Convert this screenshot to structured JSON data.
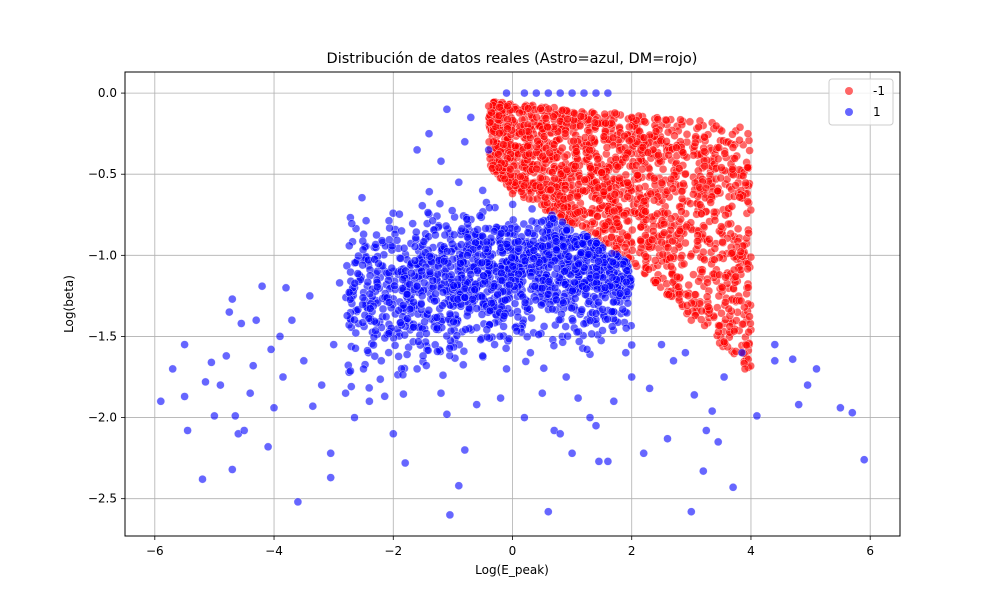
{
  "chart_data": {
    "type": "scatter",
    "title": "Distribución de datos reales (Astro=azul, DM=rojo)",
    "xlabel": "Log(E_peak)",
    "ylabel": "Log(beta)",
    "xlim": [
      -6.5,
      6.5
    ],
    "ylim": [
      -2.73,
      0.13
    ],
    "x_ticks": [
      -6,
      -4,
      -2,
      0,
      2,
      4,
      6
    ],
    "x_tick_labels": [
      "−6",
      "−4",
      "−2",
      "0",
      "2",
      "4",
      "6"
    ],
    "y_ticks": [
      0.0,
      -0.5,
      -1.0,
      -1.5,
      -2.0,
      -2.5
    ],
    "y_tick_labels": [
      "0.0",
      "−0.5",
      "−1.0",
      "−1.5",
      "−2.0",
      "−2.5"
    ],
    "grid": true,
    "legend_position": "top-right",
    "series": [
      {
        "name": "-1",
        "color": "#ff0000",
        "region": {
          "x_range": [
            -0.4,
            4.0
          ],
          "top_edge": [
            [
              -0.4,
              -0.05
            ],
            [
              4.0,
              -0.2
            ]
          ],
          "lower_edge": [
            [
              -0.4,
              -0.45
            ],
            [
              0.0,
              -0.6
            ],
            [
              2.0,
              -1.05
            ],
            [
              4.0,
              -1.72
            ]
          ],
          "count": 1700
        },
        "points": [
          [
            -0.4,
            -0.08
          ],
          [
            0.0,
            -0.62
          ],
          [
            3.9,
            -1.7
          ],
          [
            3.95,
            -0.25
          ],
          [
            2.0,
            -0.15
          ],
          [
            1.0,
            -0.8
          ],
          [
            3.0,
            -1.4
          ]
        ]
      },
      {
        "name": "1",
        "color": "#0000ff",
        "dense_region": {
          "x_range": [
            -2.8,
            2.0
          ],
          "y_center": -1.1,
          "count": 1500
        },
        "points": [
          [
            -5.9,
            -1.9
          ],
          [
            -5.7,
            -1.7
          ],
          [
            -5.5,
            -1.55
          ],
          [
            -5.5,
            -1.87
          ],
          [
            -5.45,
            -2.08
          ],
          [
            -5.2,
            -2.38
          ],
          [
            -5.15,
            -1.78
          ],
          [
            -5.05,
            -1.66
          ],
          [
            -5.0,
            -1.99
          ],
          [
            -4.9,
            -1.8
          ],
          [
            -4.8,
            -1.62
          ],
          [
            -4.75,
            -1.35
          ],
          [
            -4.7,
            -1.27
          ],
          [
            -4.7,
            -2.32
          ],
          [
            -4.65,
            -1.99
          ],
          [
            -4.6,
            -2.1
          ],
          [
            -4.55,
            -1.42
          ],
          [
            -4.5,
            -2.08
          ],
          [
            -4.4,
            -1.85
          ],
          [
            -4.35,
            -1.68
          ],
          [
            -4.3,
            -1.4
          ],
          [
            -4.2,
            -1.19
          ],
          [
            -4.1,
            -2.18
          ],
          [
            -4.05,
            -1.58
          ],
          [
            -4.0,
            -1.94
          ],
          [
            -3.9,
            -1.5
          ],
          [
            -3.85,
            -1.75
          ],
          [
            -3.8,
            -1.2
          ],
          [
            -3.7,
            -1.4
          ],
          [
            -3.6,
            -2.52
          ],
          [
            -3.5,
            -1.65
          ],
          [
            -3.4,
            -1.25
          ],
          [
            -3.35,
            -1.93
          ],
          [
            -3.2,
            -1.8
          ],
          [
            -3.05,
            -2.37
          ],
          [
            -3.05,
            -2.22
          ],
          [
            -3.0,
            -1.55
          ],
          [
            -2.9,
            -1.17
          ],
          [
            -2.8,
            -1.85
          ],
          [
            -2.65,
            -2.0
          ],
          [
            -2.5,
            -1.7
          ],
          [
            -2.4,
            -1.9
          ],
          [
            -2.2,
            -1.65
          ],
          [
            -2.0,
            -2.1
          ],
          [
            -1.8,
            -2.28
          ],
          [
            -1.6,
            -1.7
          ],
          [
            -1.5,
            -1.62
          ],
          [
            -1.2,
            -1.85
          ],
          [
            -1.1,
            -1.98
          ],
          [
            -1.05,
            -2.6
          ],
          [
            -0.9,
            -2.42
          ],
          [
            -0.8,
            -2.2
          ],
          [
            -0.6,
            -1.92
          ],
          [
            -0.5,
            -1.62
          ],
          [
            -0.3,
            -1.55
          ],
          [
            -0.2,
            -1.88
          ],
          [
            -0.1,
            -1.7
          ],
          [
            0.2,
            -2.0
          ],
          [
            0.3,
            -1.6
          ],
          [
            0.5,
            -1.85
          ],
          [
            0.6,
            -2.58
          ],
          [
            0.7,
            -2.08
          ],
          [
            0.8,
            -2.1
          ],
          [
            0.9,
            -1.75
          ],
          [
            1.0,
            -2.22
          ],
          [
            1.1,
            -1.88
          ],
          [
            1.25,
            -1.58
          ],
          [
            1.3,
            -2.0
          ],
          [
            1.4,
            -2.05
          ],
          [
            1.45,
            -2.27
          ],
          [
            1.6,
            -2.27
          ],
          [
            1.7,
            -1.9
          ],
          [
            1.9,
            -1.6
          ],
          [
            2.0,
            -1.75
          ],
          [
            2.2,
            -2.22
          ],
          [
            2.3,
            -1.82
          ],
          [
            2.5,
            -1.55
          ],
          [
            2.6,
            -2.13
          ],
          [
            2.7,
            -1.65
          ],
          [
            2.9,
            -1.6
          ],
          [
            3.0,
            -2.58
          ],
          [
            3.05,
            -1.86
          ],
          [
            3.2,
            -2.33
          ],
          [
            3.25,
            -2.08
          ],
          [
            3.35,
            -1.96
          ],
          [
            3.45,
            -2.15
          ],
          [
            3.55,
            -1.75
          ],
          [
            3.7,
            -2.43
          ],
          [
            3.85,
            -1.6
          ],
          [
            4.1,
            -1.99
          ],
          [
            4.4,
            -1.55
          ],
          [
            4.4,
            -1.65
          ],
          [
            4.7,
            -1.64
          ],
          [
            4.8,
            -1.92
          ],
          [
            4.95,
            -1.8
          ],
          [
            5.1,
            -1.7
          ],
          [
            5.5,
            -1.94
          ],
          [
            5.7,
            -1.97
          ],
          [
            5.9,
            -2.26
          ],
          [
            -1.6,
            -0.35
          ],
          [
            -1.4,
            -0.25
          ],
          [
            -1.2,
            -0.42
          ],
          [
            -1.1,
            -0.1
          ],
          [
            -0.9,
            -0.55
          ],
          [
            -0.8,
            -0.3
          ],
          [
            -0.7,
            -0.15
          ],
          [
            -0.5,
            -0.6
          ],
          [
            -0.4,
            -0.35
          ],
          [
            -0.1,
            0.0
          ],
          [
            0.2,
            0.0
          ],
          [
            0.4,
            0.0
          ],
          [
            0.6,
            0.0
          ],
          [
            0.8,
            0.0
          ],
          [
            1.0,
            0.0
          ],
          [
            1.2,
            0.0
          ],
          [
            1.4,
            0.0
          ],
          [
            1.6,
            0.0
          ]
        ]
      }
    ]
  }
}
